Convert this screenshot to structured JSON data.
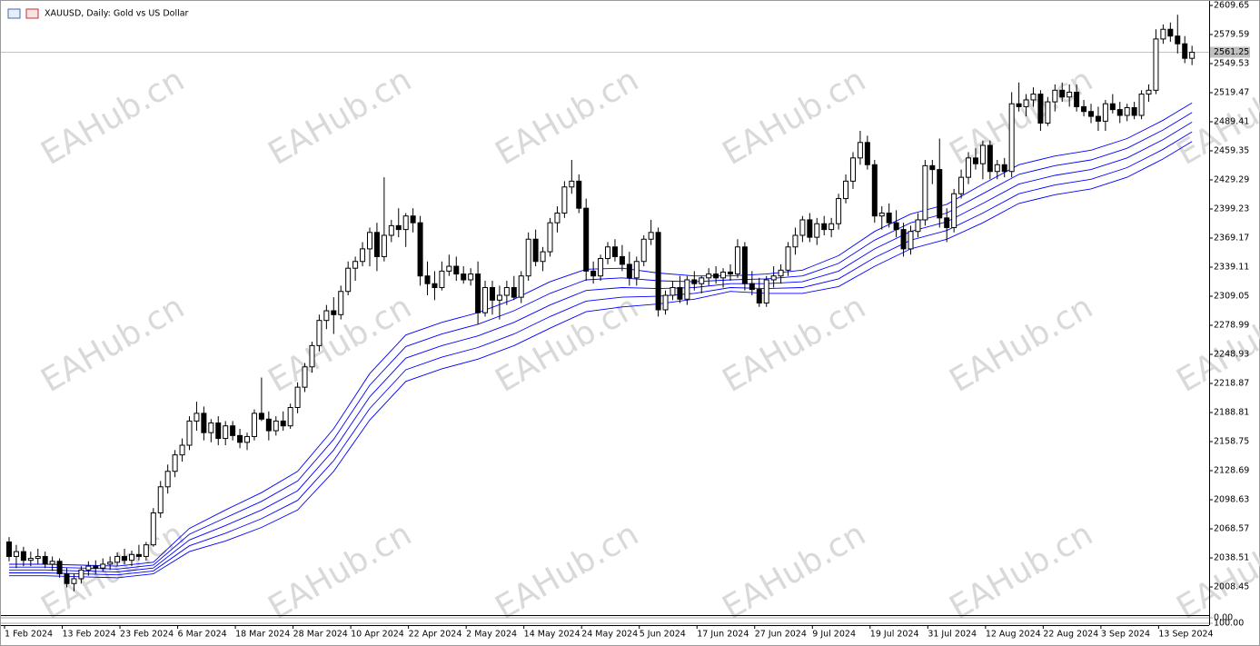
{
  "chart_data": {
    "type": "candlestick",
    "title": "XAUUSD, Daily:  Gold vs US Dollar",
    "watermark": "EAHub.cn",
    "up_color": "#ffffff",
    "down_color": "#000000",
    "line_color": "#0000ff",
    "ylim": [
      1980.3,
      2609.65
    ],
    "yticks": [
      2609.65,
      2579.59,
      2549.53,
      2519.47,
      2489.41,
      2459.35,
      2429.29,
      2399.23,
      2369.17,
      2339.11,
      2309.05,
      2278.99,
      2248.93,
      2218.87,
      2188.81,
      2158.75,
      2128.69,
      2098.63,
      2068.57,
      2038.51,
      2008.45
    ],
    "last_price": 2561.25,
    "subwindow": {
      "ylim": [
        100,
        0
      ],
      "yticks": [
        {
          "value": 100,
          "label": "100.00"
        },
        {
          "value": 0,
          "label": "0.00"
        }
      ]
    },
    "categories": [
      "1 Feb 2024",
      null,
      null,
      null,
      null,
      null,
      null,
      null,
      "13 Feb 2024",
      null,
      null,
      null,
      null,
      null,
      null,
      null,
      "23 Feb 2024",
      null,
      null,
      null,
      null,
      null,
      null,
      null,
      "6 Mar 2024",
      null,
      null,
      null,
      null,
      null,
      null,
      null,
      "18 Mar 2024",
      null,
      null,
      null,
      null,
      null,
      null,
      null,
      "28 Mar 2024",
      null,
      null,
      null,
      null,
      null,
      null,
      null,
      "10 Apr 2024",
      null,
      null,
      null,
      null,
      null,
      null,
      null,
      "22 Apr 2024",
      null,
      null,
      null,
      null,
      null,
      null,
      null,
      "2 May 2024",
      null,
      null,
      null,
      null,
      null,
      null,
      null,
      "14 May 2024",
      null,
      null,
      null,
      null,
      null,
      null,
      null,
      "24 May 2024",
      null,
      null,
      null,
      null,
      null,
      null,
      null,
      "5 Jun 2024",
      null,
      null,
      null,
      null,
      null,
      null,
      null,
      "17 Jun 2024",
      null,
      null,
      null,
      null,
      null,
      null,
      null,
      "27 Jun 2024",
      null,
      null,
      null,
      null,
      null,
      null,
      null,
      "9 Jul 2024",
      null,
      null,
      null,
      null,
      null,
      null,
      null,
      "19 Jul 2024",
      null,
      null,
      null,
      null,
      null,
      null,
      null,
      "31 Jul 2024",
      null,
      null,
      null,
      null,
      null,
      null,
      null,
      "12 Aug 2024",
      null,
      null,
      null,
      null,
      null,
      null,
      null,
      "22 Aug 2024",
      null,
      null,
      null,
      null,
      null,
      null,
      null,
      "3 Sep 2024",
      null,
      null,
      null,
      null,
      null,
      null,
      null,
      "13 Sep 2024",
      null,
      null,
      null,
      null
    ],
    "ohlc": [
      [
        2055,
        2060,
        2035,
        2040
      ],
      [
        2040,
        2052,
        2028,
        2045
      ],
      [
        2045,
        2050,
        2030,
        2036
      ],
      [
        2036,
        2045,
        2030,
        2038
      ],
      [
        2038,
        2048,
        2032,
        2040
      ],
      [
        2040,
        2045,
        2028,
        2032
      ],
      [
        2032,
        2040,
        2025,
        2035
      ],
      [
        2035,
        2038,
        2018,
        2022
      ],
      [
        2022,
        2028,
        2008,
        2012
      ],
      [
        2012,
        2022,
        2004,
        2017
      ],
      [
        2017,
        2030,
        2012,
        2026
      ],
      [
        2026,
        2035,
        2020,
        2030
      ],
      [
        2030,
        2036,
        2022,
        2028
      ],
      [
        2028,
        2038,
        2024,
        2032
      ],
      [
        2032,
        2040,
        2026,
        2034
      ],
      [
        2034,
        2044,
        2030,
        2040
      ],
      [
        2040,
        2048,
        2032,
        2036
      ],
      [
        2036,
        2046,
        2030,
        2042
      ],
      [
        2042,
        2052,
        2036,
        2040
      ],
      [
        2040,
        2055,
        2036,
        2052
      ],
      [
        2052,
        2090,
        2050,
        2085
      ],
      [
        2085,
        2118,
        2080,
        2112
      ],
      [
        2112,
        2135,
        2105,
        2128
      ],
      [
        2128,
        2150,
        2122,
        2145
      ],
      [
        2145,
        2162,
        2138,
        2155
      ],
      [
        2155,
        2185,
        2150,
        2180
      ],
      [
        2180,
        2200,
        2170,
        2188
      ],
      [
        2188,
        2195,
        2160,
        2168
      ],
      [
        2168,
        2182,
        2158,
        2178
      ],
      [
        2178,
        2185,
        2155,
        2162
      ],
      [
        2162,
        2180,
        2155,
        2175
      ],
      [
        2175,
        2180,
        2160,
        2165
      ],
      [
        2165,
        2172,
        2152,
        2158
      ],
      [
        2158,
        2168,
        2150,
        2164
      ],
      [
        2164,
        2192,
        2160,
        2188
      ],
      [
        2188,
        2225,
        2180,
        2182
      ],
      [
        2182,
        2190,
        2160,
        2170
      ],
      [
        2170,
        2185,
        2165,
        2180
      ],
      [
        2180,
        2190,
        2170,
        2175
      ],
      [
        2175,
        2198,
        2172,
        2194
      ],
      [
        2194,
        2220,
        2188,
        2215
      ],
      [
        2215,
        2240,
        2210,
        2236
      ],
      [
        2236,
        2262,
        2230,
        2258
      ],
      [
        2258,
        2290,
        2252,
        2284
      ],
      [
        2284,
        2300,
        2275,
        2294
      ],
      [
        2294,
        2308,
        2270,
        2290
      ],
      [
        2290,
        2320,
        2285,
        2314
      ],
      [
        2314,
        2345,
        2310,
        2338
      ],
      [
        2338,
        2350,
        2325,
        2345
      ],
      [
        2345,
        2365,
        2340,
        2358
      ],
      [
        2358,
        2380,
        2340,
        2375
      ],
      [
        2375,
        2385,
        2335,
        2350
      ],
      [
        2350,
        2432,
        2345,
        2372
      ],
      [
        2372,
        2388,
        2365,
        2382
      ],
      [
        2382,
        2400,
        2370,
        2378
      ],
      [
        2378,
        2395,
        2360,
        2392
      ],
      [
        2392,
        2400,
        2375,
        2385
      ],
      [
        2385,
        2392,
        2320,
        2330
      ],
      [
        2330,
        2345,
        2310,
        2322
      ],
      [
        2322,
        2335,
        2305,
        2318
      ],
      [
        2318,
        2345,
        2315,
        2335
      ],
      [
        2335,
        2352,
        2330,
        2340
      ],
      [
        2340,
        2350,
        2325,
        2332
      ],
      [
        2332,
        2340,
        2322,
        2326
      ],
      [
        2326,
        2338,
        2320,
        2332
      ],
      [
        2332,
        2345,
        2280,
        2292
      ],
      [
        2292,
        2325,
        2288,
        2318
      ],
      [
        2318,
        2325,
        2290,
        2305
      ],
      [
        2305,
        2320,
        2285,
        2310
      ],
      [
        2310,
        2325,
        2300,
        2318
      ],
      [
        2318,
        2330,
        2305,
        2308
      ],
      [
        2308,
        2335,
        2302,
        2330
      ],
      [
        2330,
        2375,
        2325,
        2368
      ],
      [
        2368,
        2378,
        2340,
        2345
      ],
      [
        2345,
        2360,
        2335,
        2355
      ],
      [
        2355,
        2390,
        2350,
        2385
      ],
      [
        2385,
        2402,
        2375,
        2395
      ],
      [
        2395,
        2428,
        2390,
        2422
      ],
      [
        2422,
        2450,
        2415,
        2428
      ],
      [
        2428,
        2435,
        2395,
        2400
      ],
      [
        2400,
        2410,
        2325,
        2335
      ],
      [
        2335,
        2345,
        2322,
        2330
      ],
      [
        2330,
        2352,
        2325,
        2348
      ],
      [
        2348,
        2365,
        2342,
        2360
      ],
      [
        2360,
        2368,
        2345,
        2350
      ],
      [
        2350,
        2362,
        2335,
        2342
      ],
      [
        2342,
        2355,
        2320,
        2328
      ],
      [
        2328,
        2350,
        2320,
        2345
      ],
      [
        2345,
        2372,
        2340,
        2368
      ],
      [
        2368,
        2388,
        2362,
        2375
      ],
      [
        2375,
        2380,
        2288,
        2295
      ],
      [
        2295,
        2315,
        2290,
        2310
      ],
      [
        2310,
        2325,
        2305,
        2318
      ],
      [
        2318,
        2330,
        2302,
        2306
      ],
      [
        2306,
        2330,
        2300,
        2326
      ],
      [
        2326,
        2335,
        2315,
        2322
      ],
      [
        2322,
        2330,
        2312,
        2328
      ],
      [
        2328,
        2338,
        2320,
        2332
      ],
      [
        2332,
        2340,
        2322,
        2328
      ],
      [
        2328,
        2338,
        2318,
        2334
      ],
      [
        2334,
        2342,
        2325,
        2332
      ],
      [
        2332,
        2368,
        2328,
        2360
      ],
      [
        2360,
        2365,
        2315,
        2322
      ],
      [
        2322,
        2335,
        2310,
        2316
      ],
      [
        2316,
        2328,
        2298,
        2302
      ],
      [
        2302,
        2330,
        2298,
        2326
      ],
      [
        2326,
        2340,
        2318,
        2330
      ],
      [
        2330,
        2342,
        2322,
        2336
      ],
      [
        2336,
        2365,
        2330,
        2360
      ],
      [
        2360,
        2380,
        2352,
        2372
      ],
      [
        2372,
        2392,
        2365,
        2388
      ],
      [
        2388,
        2395,
        2365,
        2370
      ],
      [
        2370,
        2390,
        2362,
        2384
      ],
      [
        2384,
        2392,
        2372,
        2378
      ],
      [
        2378,
        2390,
        2370,
        2384
      ],
      [
        2384,
        2415,
        2378,
        2410
      ],
      [
        2410,
        2435,
        2405,
        2428
      ],
      [
        2428,
        2458,
        2420,
        2452
      ],
      [
        2452,
        2480,
        2445,
        2468
      ],
      [
        2468,
        2475,
        2440,
        2445
      ],
      [
        2445,
        2450,
        2385,
        2392
      ],
      [
        2392,
        2402,
        2378,
        2395
      ],
      [
        2395,
        2405,
        2380,
        2385
      ],
      [
        2385,
        2398,
        2370,
        2378
      ],
      [
        2378,
        2385,
        2350,
        2358
      ],
      [
        2358,
        2382,
        2352,
        2376
      ],
      [
        2376,
        2395,
        2370,
        2388
      ],
      [
        2388,
        2450,
        2382,
        2444
      ],
      [
        2444,
        2450,
        2425,
        2440
      ],
      [
        2440,
        2472,
        2380,
        2390
      ],
      [
        2390,
        2400,
        2365,
        2380
      ],
      [
        2380,
        2420,
        2375,
        2415
      ],
      [
        2415,
        2440,
        2410,
        2432
      ],
      [
        2432,
        2458,
        2425,
        2452
      ],
      [
        2452,
        2462,
        2440,
        2446
      ],
      [
        2446,
        2470,
        2430,
        2465
      ],
      [
        2465,
        2470,
        2430,
        2438
      ],
      [
        2438,
        2450,
        2430,
        2445
      ],
      [
        2445,
        2452,
        2432,
        2438
      ],
      [
        2438,
        2520,
        2432,
        2508
      ],
      [
        2508,
        2530,
        2500,
        2505
      ],
      [
        2505,
        2518,
        2495,
        2512
      ],
      [
        2512,
        2525,
        2505,
        2518
      ],
      [
        2518,
        2522,
        2480,
        2488
      ],
      [
        2488,
        2515,
        2485,
        2510
      ],
      [
        2510,
        2528,
        2500,
        2522
      ],
      [
        2522,
        2530,
        2510,
        2515
      ],
      [
        2515,
        2528,
        2505,
        2520
      ],
      [
        2520,
        2528,
        2500,
        2505
      ],
      [
        2505,
        2512,
        2495,
        2500
      ],
      [
        2500,
        2508,
        2488,
        2495
      ],
      [
        2495,
        2505,
        2480,
        2490
      ],
      [
        2490,
        2512,
        2480,
        2508
      ],
      [
        2508,
        2518,
        2498,
        2502
      ],
      [
        2502,
        2510,
        2488,
        2496
      ],
      [
        2496,
        2508,
        2490,
        2504
      ],
      [
        2504,
        2510,
        2492,
        2496
      ],
      [
        2496,
        2522,
        2492,
        2518
      ],
      [
        2518,
        2528,
        2510,
        2522
      ],
      [
        2522,
        2585,
        2518,
        2575
      ],
      [
        2575,
        2590,
        2570,
        2585
      ],
      [
        2585,
        2592,
        2572,
        2578
      ],
      [
        2578,
        2600,
        2560,
        2570
      ],
      [
        2570,
        2578,
        2550,
        2555
      ],
      [
        2555,
        2568,
        2548,
        2561.25
      ]
    ],
    "line_x": [
      0,
      5,
      10,
      15,
      20,
      25,
      30,
      35,
      40,
      45,
      50,
      55,
      60,
      65,
      70,
      75,
      80,
      85,
      90,
      95,
      100,
      105,
      110,
      115,
      120,
      125,
      130,
      135,
      140,
      145,
      150,
      155,
      160,
      164
    ],
    "lines": [
      {
        "values": [
          2020,
          2020,
          2019,
          2018,
          2022,
          2045,
          2056,
          2070,
          2088,
          2128,
          2181,
          2221,
          2234,
          2244,
          2258,
          2276,
          2293,
          2298,
          2301,
          2306,
          2314,
          2312,
          2312,
          2319,
          2340,
          2358,
          2368,
          2385,
          2405,
          2414,
          2420,
          2432,
          2451,
          2469
        ]
      },
      {
        "values": [
          2023,
          2023,
          2022,
          2021,
          2025,
          2051,
          2064,
          2079,
          2098,
          2139,
          2193,
          2233,
          2246,
          2256,
          2270,
          2288,
          2304,
          2308,
          2309,
          2312,
          2318,
          2317,
          2318,
          2327,
          2349,
          2367,
          2377,
          2395,
          2415,
          2424,
          2430,
          2442,
          2461,
          2479
        ]
      },
      {
        "values": [
          2026,
          2026,
          2025,
          2024,
          2028,
          2057,
          2072,
          2088,
          2108,
          2150,
          2205,
          2245,
          2258,
          2268,
          2282,
          2300,
          2315,
          2318,
          2317,
          2318,
          2322,
          2322,
          2324,
          2335,
          2358,
          2376,
          2386,
          2405,
          2425,
          2434,
          2440,
          2452,
          2471,
          2489
        ]
      },
      {
        "values": [
          2029,
          2029,
          2028,
          2027,
          2031,
          2063,
          2080,
          2097,
          2118,
          2161,
          2217,
          2257,
          2270,
          2280,
          2294,
          2312,
          2326,
          2328,
          2325,
          2324,
          2326,
          2327,
          2330,
          2343,
          2367,
          2385,
          2395,
          2415,
          2435,
          2444,
          2450,
          2462,
          2481,
          2499
        ]
      },
      {
        "values": [
          2032,
          2032,
          2031,
          2030,
          2034,
          2069,
          2088,
          2106,
          2128,
          2172,
          2229,
          2269,
          2282,
          2292,
          2306,
          2324,
          2337,
          2338,
          2333,
          2330,
          2330,
          2332,
          2336,
          2351,
          2376,
          2394,
          2404,
          2425,
          2445,
          2454,
          2460,
          2472,
          2491,
          2509
        ]
      }
    ]
  }
}
